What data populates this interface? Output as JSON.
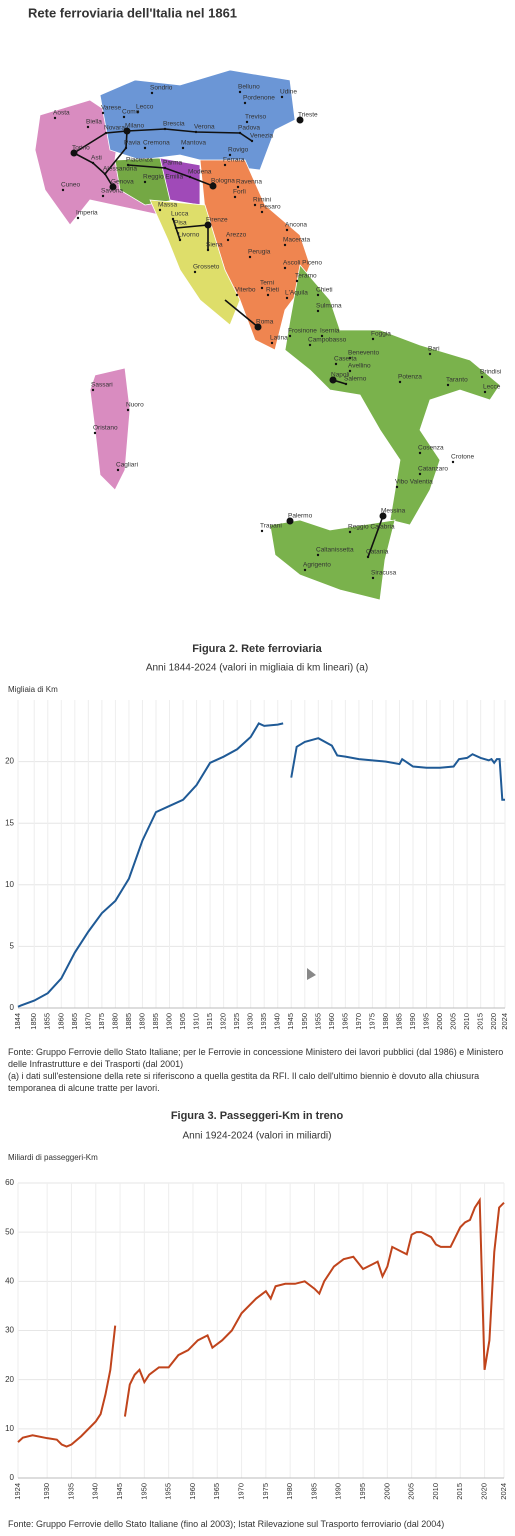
{
  "map": {
    "title": "Rete ferroviaria dell'Italia nel 1861",
    "cities": [
      "Sondrio",
      "Belluno",
      "Udine",
      "Pordenone",
      "Lecco",
      "Varese",
      "Como",
      "Aosta",
      "Trieste",
      "Treviso",
      "Biella",
      "Novara",
      "Milano",
      "Brescia",
      "Verona",
      "Padova",
      "Venezia",
      "Torino",
      "Pavia",
      "Cremona",
      "Mantova",
      "Rovigo",
      "Asti",
      "Piacenza",
      "Parma",
      "Alessandria",
      "Modena",
      "Ferrara",
      "Reggio Emilia",
      "Bologna",
      "Ravenna",
      "Cuneo",
      "Genova",
      "Savona",
      "Forlì",
      "Rimini",
      "Pesaro",
      "Massa",
      "Imperia",
      "Lucca",
      "Firenze",
      "Pisa",
      "Ancona",
      "Livorno",
      "Arezzo",
      "Macerata",
      "Siena",
      "Perugia",
      "Grosseto",
      "Ascoli Piceno",
      "Teramo",
      "Terni",
      "Rieti",
      "Chieti",
      "L'Aquila",
      "Viterbo",
      "Sulmona",
      "Roma",
      "Frosinone",
      "Isernia",
      "Campobasso",
      "Foggia",
      "Latina",
      "Bari",
      "Benevento",
      "Caserta",
      "Brindisi",
      "Avellino",
      "Napoli",
      "Taranto",
      "Lecce",
      "Salerno",
      "Potenza",
      "Sassari",
      "Nuoro",
      "Oristano",
      "Cagliari",
      "Cosenza",
      "Crotone",
      "Catanzaro",
      "Vibo Valentia",
      "Messina",
      "Palermo",
      "Trapani",
      "Reggio Calabria",
      "Caltanissetta",
      "Catania",
      "Agrigento",
      "Siracusa"
    ]
  },
  "chart_data": [
    {
      "type": "line",
      "title": "Figura 2. Rete ferroviaria",
      "subtitle": "Anni 1844-2024 (valori in migliaia di km lineari) (a)",
      "y_label": "Migliaia di Km",
      "x": [
        1844,
        1845,
        1850,
        1855,
        1860,
        1865,
        1870,
        1875,
        1880,
        1885,
        1890,
        1895,
        1900,
        1905,
        1910,
        1915,
        1920,
        1925,
        1930,
        1933,
        1935,
        1940,
        1942,
        1943,
        1945,
        1947,
        1950,
        1955,
        1960,
        1962,
        1965,
        1970,
        1975,
        1980,
        1985,
        1986,
        1990,
        1995,
        2000,
        2005,
        2007,
        2010,
        2012,
        2015,
        2018,
        2019,
        2020,
        2021,
        2022,
        2023,
        2024
      ],
      "series": [
        {
          "color": "#1f5a96",
          "values": [
            0.1,
            0.2,
            0.6,
            1.2,
            2.4,
            4.5,
            6.2,
            7.7,
            8.7,
            10.5,
            13.6,
            15.9,
            16.4,
            16.9,
            18.1,
            19.9,
            20.4,
            21.0,
            22.0,
            23.1,
            22.9,
            23.0,
            23.1,
            null,
            18.7,
            21.2,
            21.6,
            21.9,
            21.3,
            20.5,
            20.4,
            20.2,
            20.1,
            20.0,
            19.8,
            20.2,
            19.6,
            19.5,
            19.5,
            19.6,
            20.2,
            20.3,
            20.6,
            20.3,
            20.1,
            20.2,
            19.9,
            20.2,
            20.2,
            16.9,
            16.9
          ]
        },
        {
          "color": "#1f5a96",
          "dashed": true,
          "values": [
            null,
            null,
            null,
            null,
            null,
            null,
            null,
            null,
            null,
            null,
            null,
            null,
            null,
            null,
            null,
            null,
            null,
            null,
            null,
            null,
            null,
            null,
            23.1,
            null,
            18.7,
            null,
            null,
            null,
            null,
            null,
            null,
            null,
            null,
            null,
            null,
            null,
            null,
            null,
            null,
            null,
            null,
            null,
            null,
            null,
            null,
            null,
            null,
            null,
            null,
            null,
            null
          ]
        }
      ],
      "xlim": [
        1844,
        2024
      ],
      "xticks": [
        1844,
        1850,
        1855,
        1860,
        1865,
        1870,
        1875,
        1880,
        1885,
        1890,
        1895,
        1900,
        1905,
        1910,
        1915,
        1920,
        1925,
        1930,
        1935,
        1940,
        1945,
        1950,
        1955,
        1960,
        1965,
        1970,
        1975,
        1980,
        1985,
        1990,
        1995,
        2000,
        2005,
        2010,
        2015,
        2020,
        2024
      ],
      "ylim": [
        0,
        25
      ],
      "yticks": [
        0,
        5,
        10,
        15,
        20
      ],
      "grid": true,
      "notes": [
        "Fonte: Gruppo Ferrovie dello Stato Italiane; per le Ferrovie in concessione Ministero dei lavori pubblici (dal 1986) e Ministero delle Infrastrutture e dei Trasporti (dal 2001)",
        "(a) i dati sull'estensione della rete si riferiscono a quella gestita da RFI. Il calo dell'ultimo biennio è dovuto alla chiusura temporanea di alcune tratte per lavori."
      ]
    },
    {
      "type": "line",
      "title": "Figura 3. Passeggeri-Km in treno",
      "subtitle": "Anni 1924-2024 (valori in miliardi)",
      "y_label": "Miliardi di passeggeri-Km",
      "x": [
        1924,
        1925,
        1927,
        1930,
        1932,
        1933,
        1934,
        1935,
        1937,
        1940,
        1941,
        1942,
        1943,
        1944,
        1945,
        1946,
        1947,
        1948,
        1949,
        1950,
        1951,
        1953,
        1955,
        1957,
        1959,
        1961,
        1963,
        1964,
        1966,
        1968,
        1970,
        1973,
        1975,
        1976,
        1977,
        1979,
        1981,
        1983,
        1985,
        1986,
        1987,
        1989,
        1991,
        1993,
        1995,
        1997,
        1998,
        1999,
        2000,
        2001,
        2003,
        2004,
        2005,
        2006,
        2007,
        2009,
        2010,
        2011,
        2013,
        2015,
        2016,
        2017,
        2018,
        2019,
        2020,
        2021,
        2022,
        2023,
        2024
      ],
      "series": [
        {
          "color": "#c0441c",
          "values": [
            7.3,
            8.2,
            8.7,
            8.1,
            7.8,
            6.8,
            6.4,
            6.8,
            8.5,
            11.5,
            13,
            17,
            22,
            31,
            null,
            12.5,
            19,
            21,
            22,
            19.5,
            21,
            22.5,
            22.5,
            25,
            26,
            28,
            29,
            26.5,
            28,
            30,
            33.5,
            36.5,
            38,
            36.5,
            39,
            39.5,
            39.5,
            40,
            38.5,
            37.5,
            40,
            43,
            44.5,
            45,
            42.5,
            43.5,
            44,
            41,
            43,
            47,
            46,
            45.5,
            49.5,
            50,
            50,
            49,
            47.5,
            47,
            47,
            51,
            52,
            52.5,
            55,
            56.5,
            22,
            28,
            46,
            55,
            56
          ]
        },
        {
          "color": "#c0441c",
          "dashed": true,
          "values": [
            null,
            null,
            null,
            null,
            null,
            null,
            null,
            null,
            null,
            null,
            null,
            null,
            null,
            31,
            null,
            12.5,
            null,
            null,
            null,
            null,
            null,
            null,
            null,
            null,
            null,
            null,
            null,
            null,
            null,
            null,
            null,
            null,
            null,
            null,
            null,
            null,
            null,
            null,
            null,
            null,
            null,
            null,
            null,
            null,
            null,
            null,
            null,
            null,
            null,
            null,
            null,
            null,
            null,
            null,
            null,
            null,
            null,
            null,
            null,
            null,
            null,
            null,
            null,
            null,
            null,
            null,
            null,
            null,
            null
          ]
        }
      ],
      "xlim": [
        1924,
        2024
      ],
      "xticks": [
        1924,
        1930,
        1935,
        1940,
        1945,
        1950,
        1955,
        1960,
        1965,
        1970,
        1975,
        1980,
        1985,
        1990,
        1995,
        2000,
        2005,
        2010,
        2015,
        2020,
        2024
      ],
      "ylim": [
        0,
        60
      ],
      "yticks": [
        0,
        10,
        20,
        30,
        40,
        50,
        60
      ],
      "grid": true,
      "notes": [
        "Fonte: Gruppo Ferrovie dello Stato Italiane (fino al 2003); Istat Rilevazione sul Trasporto ferroviario (dal 2004)"
      ]
    }
  ]
}
